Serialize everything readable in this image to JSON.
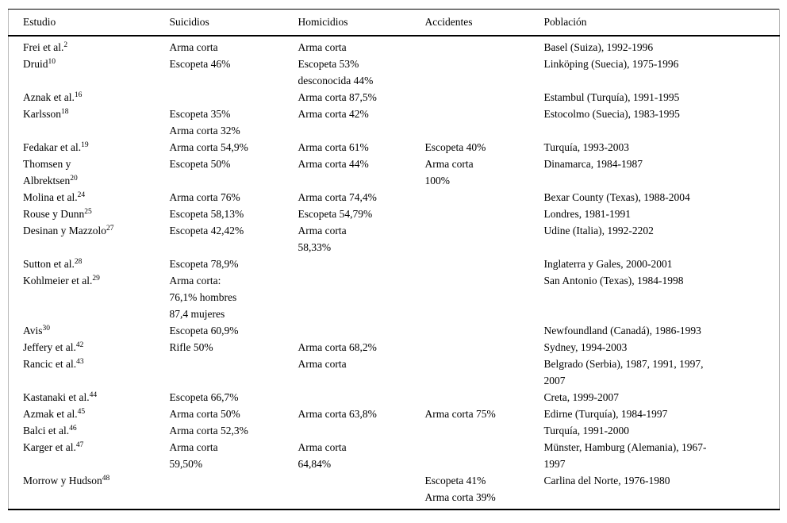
{
  "table": {
    "columns": [
      "Estudio",
      "Suicidios",
      "Homicidios",
      "Accidentes",
      "Población"
    ],
    "rows": [
      {
        "study": {
          "name": "Frei et al.",
          "ref": "2"
        },
        "suicidios": "Arma corta",
        "homicidios": "Arma corta",
        "accidentes": "",
        "poblacion": "Basel (Suiza), 1992-1996"
      },
      {
        "study": {
          "name": "Druid",
          "ref": "10"
        },
        "suicidios": "Escopeta 46%",
        "homicidios": "Escopeta 53%\ndesconocida 44%",
        "accidentes": "",
        "poblacion": "Linköping (Suecia), 1975-1996"
      },
      {
        "study": {
          "name": "Aznak et al.",
          "ref": "16"
        },
        "suicidios": "",
        "homicidios": "Arma corta 87,5%",
        "accidentes": "",
        "poblacion": "Estambul (Turquía), 1991-1995"
      },
      {
        "study": {
          "name": "Karlsson",
          "ref": "18"
        },
        "suicidios": "Escopeta 35%\nArma corta 32%",
        "homicidios": "Arma corta 42%",
        "accidentes": "",
        "poblacion": "Estocolmo (Suecia), 1983-1995"
      },
      {
        "study": {
          "name": "Fedakar et al.",
          "ref": "19"
        },
        "suicidios": "Arma corta 54,9%",
        "homicidios": "Arma corta 61%",
        "accidentes": "Escopeta 40%",
        "poblacion": "Turquía, 1993-2003"
      },
      {
        "study": {
          "name": "Thomsen y\nAlbrektsen",
          "ref": "20"
        },
        "suicidios": "Escopeta 50%",
        "homicidios": "Arma corta 44%",
        "accidentes": "Arma corta\n100%",
        "poblacion": "Dinamarca, 1984-1987"
      },
      {
        "study": {
          "name": "Molina et al.",
          "ref": "24"
        },
        "suicidios": "Arma corta 76%",
        "homicidios": "Arma corta 74,4%",
        "accidentes": "",
        "poblacion": "Bexar County (Texas), 1988-2004"
      },
      {
        "study": {
          "name": "Rouse y Dunn",
          "ref": "25"
        },
        "suicidios": "Escopeta 58,13%",
        "homicidios": "Escopeta 54,79%",
        "accidentes": "",
        "poblacion": "Londres, 1981-1991"
      },
      {
        "study": {
          "name": "Desinan y Mazzolo",
          "ref": "27"
        },
        "suicidios": "Escopeta 42,42%",
        "homicidios": "Arma corta\n58,33%",
        "accidentes": "",
        "poblacion": "Udine (Italia), 1992-2202"
      },
      {
        "study": {
          "name": "Sutton et al.",
          "ref": "28"
        },
        "suicidios": "Escopeta 78,9%",
        "homicidios": "",
        "accidentes": "",
        "poblacion": "Inglaterra y Gales, 2000-2001"
      },
      {
        "study": {
          "name": "Kohlmeier et al.",
          "ref": "29"
        },
        "suicidios": "Arma corta:\n76,1% hombres\n87,4 mujeres",
        "homicidios": "",
        "accidentes": "",
        "poblacion": "San Antonio (Texas), 1984-1998"
      },
      {
        "study": {
          "name": "Avis",
          "ref": "30"
        },
        "suicidios": "Escopeta 60,9%",
        "homicidios": "",
        "accidentes": "",
        "poblacion": "Newfoundland (Canadá), 1986-1993"
      },
      {
        "study": {
          "name": "Jeffery et al.",
          "ref": "42"
        },
        "suicidios": "Rifle 50%",
        "homicidios": "Arma corta 68,2%",
        "accidentes": "",
        "poblacion": "Sydney, 1994-2003"
      },
      {
        "study": {
          "name": "Rancic et al.",
          "ref": "43"
        },
        "suicidios": "",
        "homicidios": "Arma corta",
        "accidentes": "",
        "poblacion": "Belgrado (Serbia), 1987, 1991, 1997,\n2007"
      },
      {
        "study": {
          "name": "Kastanaki et al.",
          "ref": "44"
        },
        "suicidios": "Escopeta 66,7%",
        "homicidios": "",
        "accidentes": "",
        "poblacion": "Creta, 1999-2007"
      },
      {
        "study": {
          "name": "Azmak et al.",
          "ref": "45"
        },
        "suicidios": "Arma corta 50%",
        "homicidios": "Arma corta 63,8%",
        "accidentes": "Arma corta 75%",
        "poblacion": "Edirne (Turquía), 1984-1997"
      },
      {
        "study": {
          "name": "Balci et al.",
          "ref": "46"
        },
        "suicidios": "Arma corta 52,3%",
        "homicidios": "",
        "accidentes": "",
        "poblacion": "Turquía, 1991-2000"
      },
      {
        "study": {
          "name": "Karger et al.",
          "ref": "47"
        },
        "suicidios": "Arma corta\n59,50%",
        "homicidios": "Arma corta\n64,84%",
        "accidentes": "",
        "poblacion": "Münster, Hamburg (Alemania), 1967-\n1997"
      },
      {
        "study": {
          "name": "Morrow y Hudson",
          "ref": "48"
        },
        "suicidios": "",
        "homicidios": "",
        "accidentes": "Escopeta 41%\nArma corta 39%",
        "poblacion": "Carlina del Norte, 1976-1980"
      }
    ]
  }
}
